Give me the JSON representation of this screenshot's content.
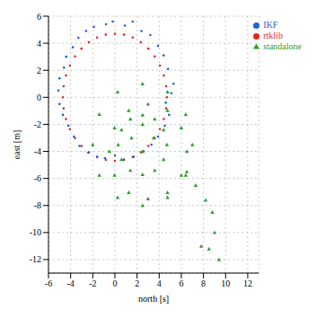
{
  "chart_data": {
    "type": "scatter",
    "x_label": "north [s]",
    "y_label": "east [m]",
    "xlim": [
      -6,
      13
    ],
    "ylim": [
      -13,
      6
    ],
    "xticks": [
      -6,
      -4,
      -2,
      0,
      2,
      4,
      6,
      8,
      10,
      12
    ],
    "yticks": [
      -12,
      -10,
      -8,
      -6,
      -4,
      -2,
      0,
      2,
      4,
      6
    ],
    "grid": true,
    "legend": "upper right",
    "series": [
      {
        "name": "rtklib",
        "color": "#e8261c",
        "marker": "circle",
        "x": [
          4.7,
          4.63,
          4.42,
          4.07,
          3.6,
          3.02,
          2.35,
          1.61,
          0.82,
          0,
          -0.82,
          -1.61,
          -2.35,
          -3.02,
          -3.6,
          -4.07,
          -4.42,
          -4.63,
          -4.7,
          -4.63,
          -4.42,
          -4.07,
          -3.6,
          -3.02,
          -2.35,
          -1.61,
          -0.82,
          0,
          0.82,
          1.61,
          2.35,
          3.02,
          3.6,
          4.07,
          4.42,
          4.63
        ],
        "values": [
          0,
          0.82,
          1.61,
          2.35,
          3.02,
          3.6,
          4.07,
          4.42,
          4.63,
          4.7,
          4.63,
          4.42,
          4.07,
          3.6,
          3.02,
          2.35,
          1.61,
          0.82,
          0,
          -0.82,
          -1.61,
          -2.35,
          -3.02,
          -3.6,
          -4.07,
          -4.42,
          -4.63,
          -4.7,
          -4.63,
          -4.42,
          -4.07,
          -3.6,
          -3.02,
          -2.35,
          -1.61,
          -0.82
        ]
      },
      {
        "name": "IKF",
        "color": "#1f5fd6",
        "marker": "circle",
        "x": [
          5.1,
          4.8,
          3.9,
          2.4,
          0.9,
          -0.8,
          -2.6,
          -3.8,
          -4.6,
          -5.1,
          -4.7,
          -3.7,
          -2.4,
          -0.9,
          0.8,
          2.6,
          3.9,
          4.9,
          5.3,
          4.4,
          3.2,
          1.6,
          -0.2,
          -1.9,
          -3.3,
          -4.4,
          -5.0,
          -5.0,
          -4.2,
          -3.2,
          -1.6,
          0,
          1.7,
          3.3,
          4.5,
          4.6
        ],
        "values": [
          0.3,
          2.1,
          3.8,
          4.9,
          5.3,
          5.4,
          4.9,
          3.7,
          2.2,
          0.5,
          -1.3,
          -2.9,
          -4.1,
          -4.5,
          -4.6,
          -4.0,
          -2.9,
          -1.3,
          1.0,
          3.1,
          4.6,
          5.6,
          5.6,
          5.2,
          4.4,
          3.0,
          1.4,
          -0.5,
          -2.1,
          -3.6,
          -4.4,
          -4.3,
          -4.4,
          -3.5,
          -2.1,
          -0.4
        ]
      },
      {
        "name": "standalone",
        "color": "#2ca02c",
        "marker": "triangle",
        "x": [
          9.4,
          8.5,
          7.8,
          9.0,
          8.8,
          8.2,
          7.3,
          6.5,
          7.0,
          6.4,
          4.75,
          2.5,
          0.25,
          -1.4,
          -2.0,
          -1.4,
          0.25,
          2.5,
          4.75,
          6.4,
          6.5,
          6.0,
          4.75,
          3.0,
          1.25,
          -0.03,
          -0.5,
          -0.03,
          1.25,
          3.0,
          4.75,
          6.0,
          4.7,
          4.4,
          3.6,
          2.5,
          1.4,
          0.6,
          0.3,
          0.6,
          1.4,
          2.5,
          3.6,
          4.4,
          3.5,
          2.5,
          1.5,
          2.5
        ],
        "values": [
          -12,
          -11.2,
          -11,
          -10,
          -8.5,
          -7.6,
          -6.5,
          -5.5,
          -3.5,
          -1.25,
          0.4,
          1.0,
          0.4,
          -1.25,
          -3.5,
          -5.75,
          -7.4,
          -8.0,
          -7.4,
          -5.75,
          -4.0,
          -2.25,
          -0.97,
          -0.5,
          -0.97,
          -2.25,
          -4.0,
          -5.75,
          -7.03,
          -7.5,
          -7.03,
          -5.75,
          -3.5,
          -2.4,
          -1.6,
          -1.3,
          -1.6,
          -2.4,
          -3.5,
          -4.6,
          -5.4,
          -5.7,
          -5.4,
          -4.6,
          -3.0,
          -2.0,
          -3.0,
          -4.0
        ]
      }
    ]
  }
}
